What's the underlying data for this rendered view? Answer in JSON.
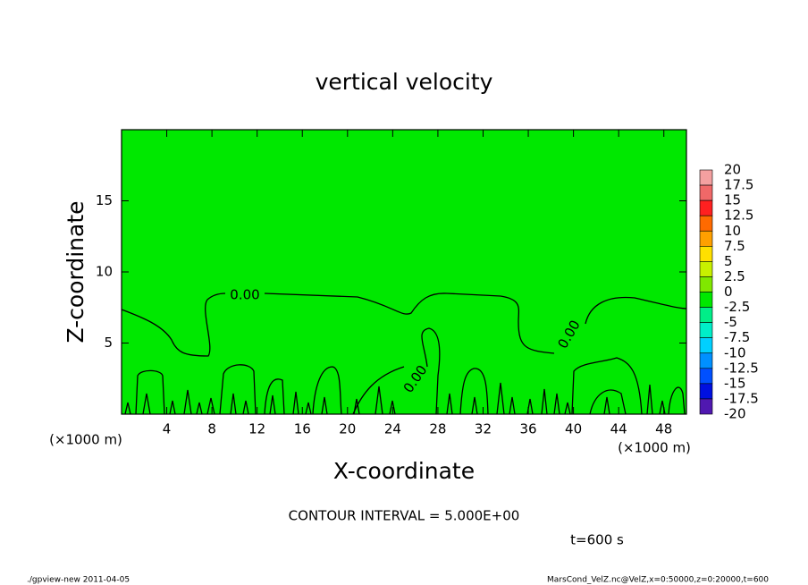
{
  "chart_data": {
    "type": "contour",
    "title": "vertical velocity",
    "xlabel": "X-coordinate",
    "ylabel": "Z-coordinate",
    "x_unit": "(×1000 m)",
    "xlim": [
      0,
      50
    ],
    "xticks": [
      4,
      8,
      12,
      16,
      20,
      24,
      28,
      32,
      36,
      40,
      44,
      48
    ],
    "ylim": [
      0,
      20
    ],
    "yticks": [
      5,
      10,
      15
    ],
    "fill_color": "#00e800",
    "contour": {
      "level": 0,
      "label": "0.00",
      "color": "#000000"
    },
    "colorbar": {
      "levels": [
        20,
        17.5,
        15,
        12.5,
        10,
        7.5,
        5,
        2.5,
        0,
        -2.5,
        -5,
        -7.5,
        -10,
        -12.5,
        -15,
        -17.5,
        -20
      ],
      "colors": [
        "#f4a0a0",
        "#f06868",
        "#ff2020",
        "#ff6a00",
        "#ffa000",
        "#ffe000",
        "#c8f000",
        "#80e800",
        "#00e800",
        "#00ee88",
        "#00eec8",
        "#00d0ff",
        "#0090ff",
        "#0050ff",
        "#0010e0",
        "#5018b0"
      ]
    },
    "interval_note": "CONTOUR INTERVAL = 5.000E+00",
    "time_note": "t=600 s",
    "footer_left": "./gpview-new   2011-04-05",
    "footer_right": "MarsCond_VelZ.nc@VelZ,x=0:50000,z=0:20000,t=600"
  }
}
